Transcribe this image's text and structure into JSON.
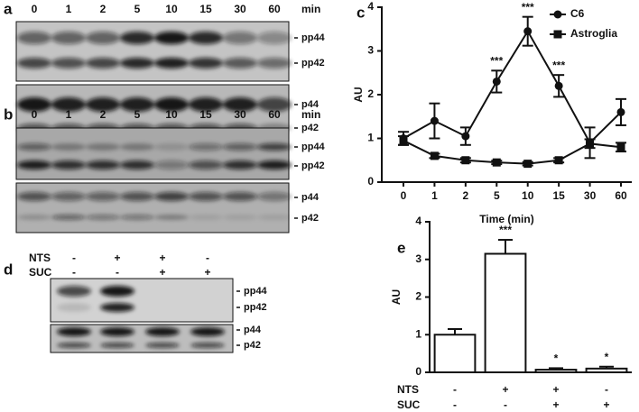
{
  "panel_labels": [
    "a",
    "b",
    "c",
    "d",
    "e"
  ],
  "blot_a": {
    "lanes": [
      "0",
      "1",
      "2",
      "5",
      "10",
      "15",
      "30",
      "60"
    ],
    "unit": "min",
    "bands": [
      "pp44",
      "pp42",
      "p44",
      "p42"
    ]
  },
  "blot_b": {
    "lanes": [
      "0",
      "1",
      "2",
      "5",
      "10",
      "15",
      "30",
      "60"
    ],
    "unit": "min",
    "bands": [
      "pp44",
      "pp42",
      "p44",
      "p42"
    ]
  },
  "blot_d": {
    "rows": [
      {
        "name": "NTS",
        "marks": [
          "-",
          "+",
          "+",
          "-"
        ]
      },
      {
        "name": "SUC",
        "marks": [
          "-",
          "-",
          "+",
          "+"
        ]
      }
    ],
    "bands": [
      "pp44",
      "pp42",
      "p44",
      "p42"
    ]
  },
  "chart_data": [
    {
      "type": "line",
      "xlabel": "Time (min)",
      "ylabel": "AU",
      "categories": [
        "0",
        "1",
        "2",
        "5",
        "10",
        "15",
        "30",
        "60"
      ],
      "ylim": [
        0,
        4
      ],
      "yticks": [
        0,
        1,
        2,
        3,
        4
      ],
      "legend": "top-right",
      "series": [
        {
          "name": "C6",
          "marker": "circle",
          "color": "#111111",
          "values": [
            1.0,
            1.4,
            1.05,
            2.3,
            3.45,
            2.2,
            0.9,
            1.6
          ],
          "errors": [
            0.15,
            0.4,
            0.2,
            0.25,
            0.33,
            0.25,
            0.35,
            0.3
          ],
          "annotations": [
            null,
            null,
            null,
            "***",
            "***",
            "***",
            null,
            null
          ]
        },
        {
          "name": "Astroglia",
          "marker": "square",
          "color": "#111111",
          "values": [
            0.95,
            0.6,
            0.5,
            0.45,
            0.42,
            0.5,
            0.88,
            0.8
          ],
          "errors": [
            0.1,
            0.05,
            0.05,
            0.04,
            0.04,
            0.05,
            0.1,
            0.1
          ]
        }
      ]
    },
    {
      "type": "bar",
      "ylabel": "AU",
      "ylim": [
        0,
        4
      ],
      "yticks": [
        0,
        1,
        2,
        3,
        4
      ],
      "color": "#ffffff",
      "values": [
        1.0,
        3.15,
        0.07,
        0.1
      ],
      "errors": [
        0.15,
        0.37,
        0.04,
        0.05
      ],
      "annotations": [
        null,
        "***",
        "*",
        "*"
      ],
      "rows": [
        {
          "name": "NTS",
          "values": [
            "-",
            "+",
            "+",
            "-"
          ]
        },
        {
          "name": "SUC",
          "values": [
            "-",
            "-",
            "+",
            "+"
          ]
        }
      ]
    }
  ]
}
